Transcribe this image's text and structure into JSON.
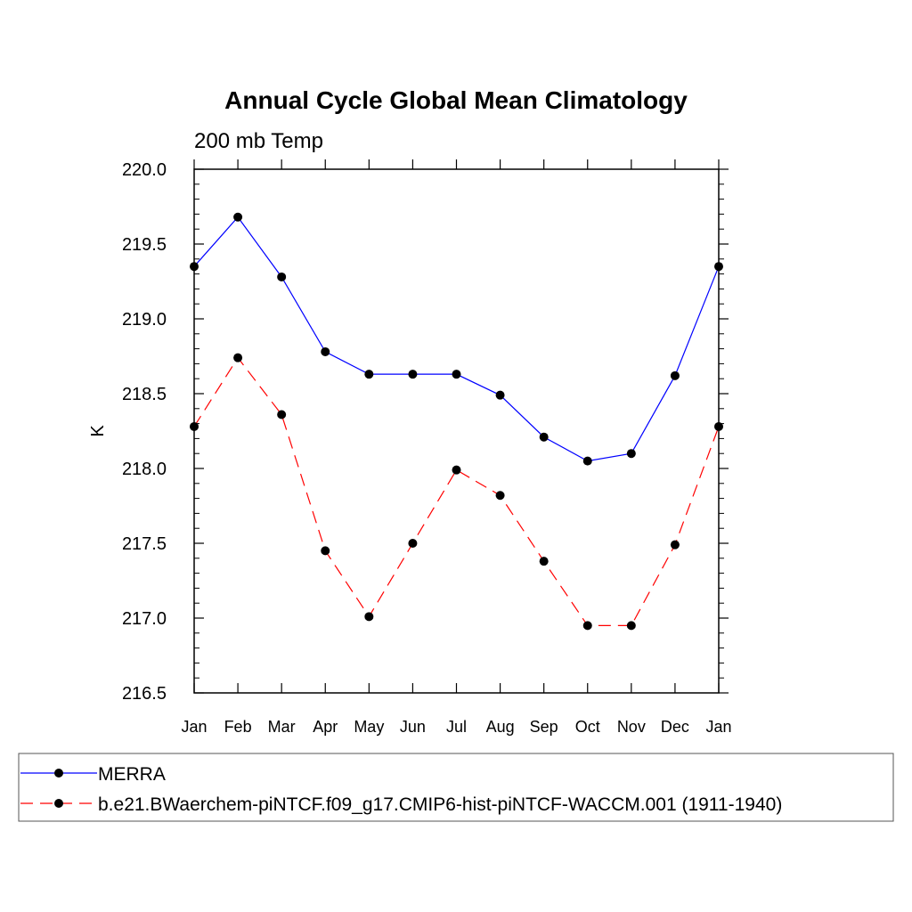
{
  "chart_data": {
    "type": "line",
    "title": "Annual Cycle Global Mean Climatology",
    "subtitle": "200 mb Temp",
    "ylabel": "K",
    "xlabel": "",
    "categories": [
      "Jan",
      "Feb",
      "Mar",
      "Apr",
      "May",
      "Jun",
      "Jul",
      "Aug",
      "Sep",
      "Oct",
      "Nov",
      "Dec",
      "Jan"
    ],
    "ylim": [
      216.5,
      220.0
    ],
    "yticks": [
      "220.0",
      "219.5",
      "219.0",
      "218.5",
      "218.0",
      "217.5",
      "217.0",
      "216.5"
    ],
    "ytick_values": [
      220.0,
      219.5,
      219.0,
      218.5,
      218.0,
      217.5,
      217.0,
      216.5
    ],
    "grid": false,
    "legend_position": "bottom",
    "series": [
      {
        "name": "MERRA",
        "color": "#0000ff",
        "line_style": "solid",
        "marker": "filled-circle",
        "values": [
          219.35,
          219.68,
          219.28,
          218.78,
          218.63,
          218.63,
          218.63,
          218.49,
          218.21,
          218.05,
          218.1,
          218.62,
          219.35
        ]
      },
      {
        "name": "b.e21.BWaerchem-piNTCF.f09_g17.CMIP6-hist-piNTCF-WACCM.001 (1911-1940)",
        "color": "#ff0000",
        "line_style": "dashed",
        "marker": "filled-circle",
        "values": [
          218.28,
          218.74,
          218.36,
          217.45,
          217.01,
          217.5,
          217.99,
          217.82,
          217.38,
          216.95,
          216.95,
          217.49,
          218.28
        ]
      }
    ]
  }
}
